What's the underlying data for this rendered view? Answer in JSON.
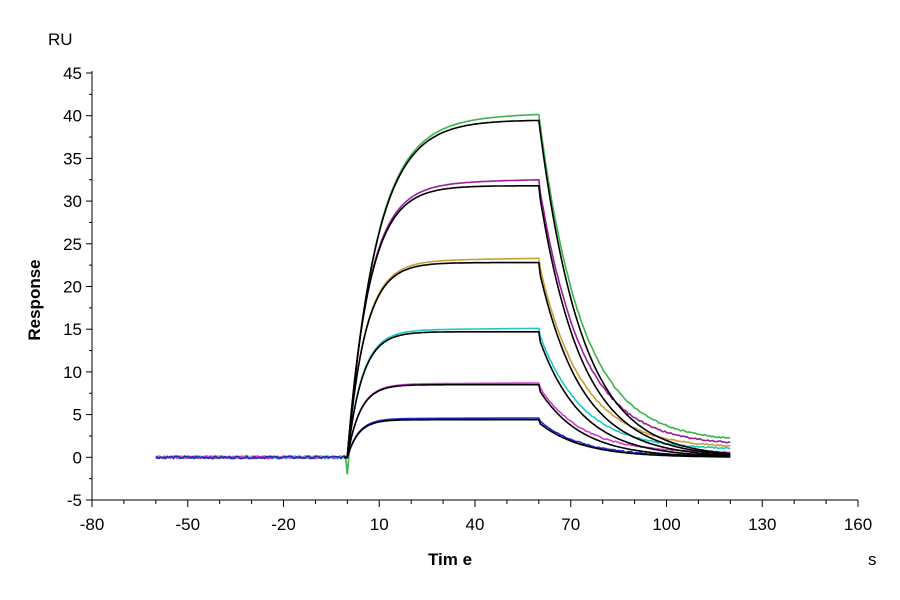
{
  "chart_data": {
    "type": "line",
    "title": "",
    "xlabel": "Tim e",
    "ylabel": "Response",
    "x_unit": "s",
    "y_unit": "RU",
    "xlim": [
      -80,
      160
    ],
    "ylim": [
      -5,
      45
    ],
    "x_ticks": [
      -80,
      -50,
      -20,
      10,
      40,
      70,
      100,
      130,
      160
    ],
    "x_tick_labels": [
      "-80",
      "-50",
      "-20",
      "10",
      "40",
      "70",
      "100",
      "130",
      "160"
    ],
    "y_ticks": [
      -5,
      0,
      5,
      10,
      15,
      20,
      25,
      30,
      35,
      40,
      45
    ],
    "y_tick_labels": [
      "-5",
      "0",
      "5",
      "10",
      "15",
      "20",
      "25",
      "30",
      "35",
      "40",
      "45"
    ],
    "grid": false,
    "legend": "none",
    "injection_start_s": 0,
    "injection_end_s": 60,
    "baseline_start_s": -60,
    "run_end_s": 120,
    "series": [
      {
        "color": "#3cb44b",
        "plateau": 40.2,
        "fit_plateau": 39.5,
        "tail": 1.8
      },
      {
        "color": "#9b1ea0",
        "plateau": 32.5,
        "fit_plateau": 31.8,
        "tail": 1.4
      },
      {
        "color": "#c8a032",
        "plateau": 23.3,
        "fit_plateau": 22.8,
        "tail": 1.1
      },
      {
        "color": "#1ec8c8",
        "plateau": 15.1,
        "fit_plateau": 14.7,
        "tail": 0.9
      },
      {
        "color": "#d23cd2",
        "plateau": 8.7,
        "fit_plateau": 8.5,
        "tail": 0.5
      },
      {
        "color": "#1e28c8",
        "plateau": 4.6,
        "fit_plateau": 4.4,
        "tail": 0.1
      }
    ],
    "fit_color": "#000000"
  }
}
